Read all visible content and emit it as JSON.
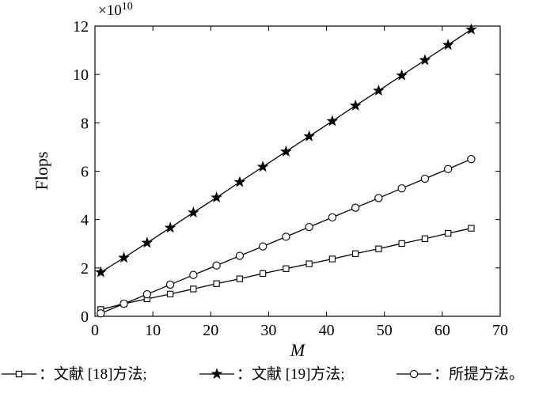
{
  "chart_data": {
    "type": "line",
    "title": "",
    "xlabel": "M",
    "ylabel": "Flops",
    "y_multiplier": "×10",
    "y_multiplier_exp": "10",
    "xlim": [
      0,
      70
    ],
    "ylim": [
      0,
      12
    ],
    "xticks": [
      "0",
      "10",
      "20",
      "30",
      "40",
      "50",
      "60",
      "70"
    ],
    "yticks": [
      "0",
      "2",
      "4",
      "6",
      "8",
      "10",
      "12"
    ],
    "grid": false,
    "legend_position": "bottom",
    "x": [
      1,
      5,
      9,
      13,
      17,
      21,
      25,
      29,
      33,
      37,
      41,
      45,
      49,
      53,
      57,
      61,
      65
    ],
    "series": [
      {
        "name": "文献 [18]方法",
        "legend_label": "：文献 [18]方法;",
        "marker": "square",
        "values": [
          0.28,
          0.52,
          0.72,
          0.92,
          1.13,
          1.35,
          1.55,
          1.77,
          1.97,
          2.17,
          2.37,
          2.59,
          2.79,
          3.01,
          3.21,
          3.43,
          3.64
        ]
      },
      {
        "name": "文献 [19]方法",
        "legend_label": "：文献 [19]方法;",
        "marker": "star",
        "values": [
          1.82,
          2.42,
          3.04,
          3.66,
          4.29,
          4.91,
          5.55,
          6.18,
          6.81,
          7.44,
          8.07,
          8.71,
          9.33,
          9.96,
          10.59,
          11.22,
          11.86
        ]
      },
      {
        "name": "所提方法",
        "legend_label": "：所提方法。",
        "marker": "circle",
        "values": [
          0.12,
          0.52,
          0.91,
          1.31,
          1.71,
          2.1,
          2.5,
          2.89,
          3.29,
          3.69,
          4.09,
          4.49,
          4.89,
          5.29,
          5.69,
          6.09,
          6.5
        ]
      }
    ]
  }
}
